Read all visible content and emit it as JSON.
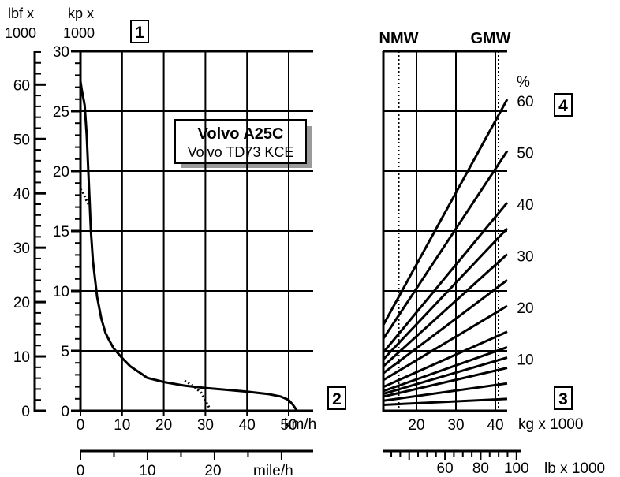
{
  "chart_data": {
    "type": "line",
    "title_box": {
      "title": "Volvo A25C",
      "subtitle": "Volvo TD73 KCE"
    },
    "box_labels": [
      "1",
      "2",
      "3",
      "4"
    ],
    "rimpull_chart": {
      "x_unit": "km/h",
      "x_unit_secondary": "mile/h",
      "y_unit_kp": {
        "line1": "kp x",
        "line2": "1000"
      },
      "y_unit_lbf": {
        "line1": "lbf x",
        "line2": "1000"
      },
      "x_ticks_kmh": [
        "0",
        "10",
        "20",
        "30",
        "40",
        "50"
      ],
      "x_ticks_mph": [
        "0",
        "10",
        "20"
      ],
      "y_ticks_kp": [
        "0",
        "5",
        "10",
        "15",
        "20",
        "25",
        "30"
      ],
      "y_ticks_lbf": [
        "0",
        "10",
        "20",
        "30",
        "40",
        "50",
        "60"
      ],
      "xlim_kmh": [
        0,
        55
      ],
      "ylim_kp": [
        0,
        30
      ],
      "series": [
        {
          "style": "solid",
          "x": [
            0,
            0.3,
            1.0,
            1.5,
            2.0,
            2.5,
            3.0,
            4,
            5,
            6,
            7,
            8,
            10,
            12,
            15,
            16,
            20,
            25,
            30,
            35,
            40,
            45,
            48,
            50,
            51,
            52
          ],
          "y": [
            27.5,
            26.8,
            25.5,
            23,
            19,
            15,
            12.5,
            9.5,
            7.7,
            6.5,
            5.8,
            5.2,
            4.4,
            3.7,
            3.0,
            2.75,
            2.4,
            2.1,
            1.9,
            1.75,
            1.6,
            1.4,
            1.2,
            0.9,
            0.5,
            0
          ]
        },
        {
          "style": "dotted",
          "x": [
            0,
            0.5,
            1.0,
            1.5,
            2.0
          ],
          "y": [
            18.5,
            18.3,
            17.9,
            17.5,
            17.2
          ]
        },
        {
          "style": "dotted",
          "x": [
            25,
            27,
            29,
            31
          ],
          "y": [
            2.5,
            2.1,
            1.5,
            0.2
          ]
        }
      ]
    },
    "grade_chart": {
      "x_unit": "kg x 1000",
      "x_unit_secondary": "lb x 1000",
      "x_ticks_kg": [
        "20",
        "30",
        "40"
      ],
      "x_ticks_lb": [
        "60",
        "80",
        "100"
      ],
      "xlim_kg": [
        10,
        42
      ],
      "percent_unit": "%",
      "percent_ticks": [
        "10",
        "20",
        "30",
        "40",
        "50",
        "60"
      ],
      "weight_markers": [
        {
          "label": "NMW",
          "kg": 15.5
        },
        {
          "label": "GMW",
          "kg": 40.0
        }
      ],
      "grade_lines_percent": [
        2,
        5,
        8,
        10,
        12,
        15,
        20,
        25,
        30,
        35,
        40,
        50,
        60
      ]
    }
  }
}
